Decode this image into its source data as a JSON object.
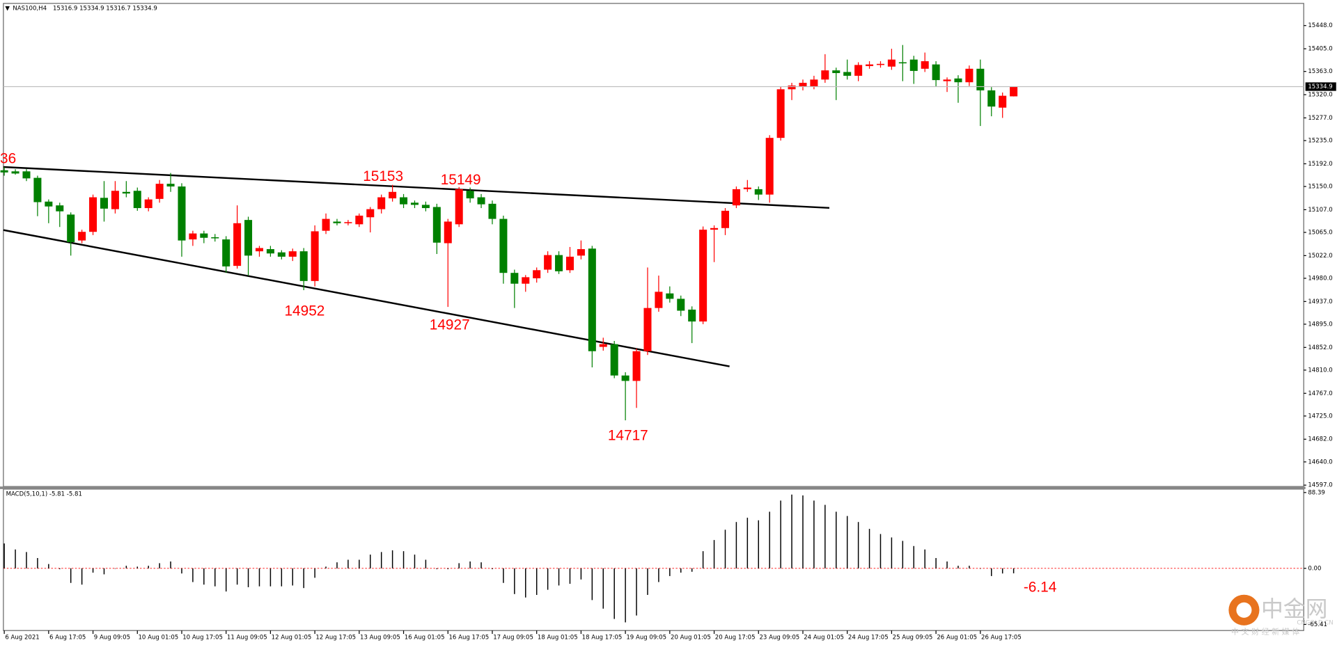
{
  "chart_data": [
    {
      "type": "candlestick",
      "title": "NAS100,H4",
      "subtitle": "15316.9 15334.9 15316.7 15334.9",
      "categories": [
        "6 Aug 2021",
        null,
        null,
        null,
        "6 Aug 17:05",
        null,
        null,
        null,
        "9 Aug 09:05",
        null,
        null,
        null,
        "10 Aug 01:05",
        null,
        null,
        null,
        "10 Aug 17:05",
        null,
        null,
        null,
        "11 Aug 09:05",
        null,
        null,
        null,
        "12 Aug 01:05",
        null,
        null,
        null,
        "12 Aug 17:05",
        null,
        null,
        null,
        "13 Aug 09:05",
        null,
        null,
        null,
        "16 Aug 01:05",
        null,
        null,
        null,
        "16 Aug 17:05",
        null,
        null,
        null,
        "17 Aug 09:05",
        null,
        null,
        null,
        "18 Aug 01:05",
        null,
        null,
        null,
        "18 Aug 17:05",
        null,
        null,
        null,
        "19 Aug 09:05",
        null,
        null,
        null,
        "20 Aug 01:05",
        null,
        null,
        null,
        "20 Aug 17:05",
        null,
        null,
        null,
        "23 Aug 09:05",
        null,
        null,
        null,
        "24 Aug 01:05",
        null,
        null,
        null,
        "24 Aug 17:05",
        null,
        null,
        null,
        "25 Aug 09:05",
        null,
        null,
        null,
        "26 Aug 01:05",
        null,
        null,
        null,
        "26 Aug 17:05",
        null,
        null,
        null
      ],
      "open": [
        15180,
        15178,
        15178,
        15166,
        15122,
        15115,
        15098,
        15050,
        15066,
        15129,
        15108,
        15140,
        15142,
        15110,
        15127,
        15155,
        15150,
        15052,
        15063,
        15056,
        15052,
        15003,
        15088,
        15030,
        15034,
        15028,
        15020,
        15030,
        14975,
        15068,
        15085,
        15082,
        15080,
        15093,
        15108,
        15128,
        15130,
        15120,
        15116,
        15112,
        15045,
        15080,
        15142,
        15130,
        15118,
        15090,
        14990,
        14970,
        14980,
        14996,
        15023,
        14995,
        15022,
        15035,
        14853,
        14858,
        14800,
        14790,
        14845,
        14925,
        14952,
        14942,
        14922,
        14900,
        15070,
        15073,
        15115,
        15145,
        15145,
        15135,
        15240,
        15330,
        15335,
        15335,
        15348,
        15365,
        15362,
        15355,
        15373,
        15375,
        15372,
        15380,
        15385,
        15368,
        15376,
        15345,
        15350,
        15343,
        15368,
        15328,
        15296,
        15316.9
      ],
      "high": [
        15186,
        15182,
        15182,
        15170,
        15126,
        15120,
        15102,
        15070,
        15135,
        15160,
        15160,
        15160,
        15148,
        15130,
        15162,
        15175,
        15156,
        15068,
        15068,
        15062,
        15058,
        15115,
        15094,
        15040,
        15040,
        15032,
        15035,
        15036,
        15078,
        15100,
        15090,
        15088,
        15100,
        15112,
        15135,
        15153,
        15136,
        15124,
        15122,
        15118,
        15090,
        15149,
        15148,
        15136,
        15124,
        15096,
        14996,
        14986,
        15000,
        15030,
        15030,
        15038,
        15050,
        15040,
        14870,
        14864,
        14806,
        14850,
        15000,
        14985,
        14965,
        14948,
        14928,
        15076,
        15078,
        15110,
        15150,
        15162,
        15150,
        15245,
        15335,
        15342,
        15348,
        15355,
        15395,
        15370,
        15385,
        15380,
        15382,
        15382,
        15405,
        15412,
        15392,
        15398,
        15382,
        15352,
        15356,
        15374,
        15385,
        15334,
        15324,
        15334.9
      ],
      "low": [
        15170,
        15172,
        15160,
        15095,
        15082,
        15075,
        15022,
        15045,
        15060,
        15085,
        15100,
        15130,
        15105,
        15104,
        15120,
        15140,
        15020,
        15040,
        15045,
        15048,
        14990,
        14998,
        14985,
        15020,
        15020,
        15015,
        15012,
        14958,
        14965,
        15062,
        15078,
        15078,
        15075,
        15065,
        15100,
        15122,
        15110,
        15110,
        15104,
        15025,
        14927,
        15075,
        15120,
        15110,
        15080,
        14970,
        14925,
        14955,
        14972,
        14990,
        14988,
        14990,
        15015,
        14815,
        14846,
        14795,
        14717,
        14740,
        14838,
        14918,
        14935,
        14910,
        14860,
        14895,
        15010,
        15060,
        15110,
        15140,
        15125,
        15120,
        15235,
        15310,
        15328,
        15330,
        15342,
        15310,
        15348,
        15345,
        15368,
        15370,
        15366,
        15345,
        15340,
        15362,
        15335,
        15325,
        15305,
        15336,
        15262,
        15280,
        15277,
        15316.7
      ],
      "close": [
        15176,
        15174,
        15165,
        15121,
        15113,
        15104,
        15047,
        15066,
        15130,
        15109,
        15142,
        15137,
        15110,
        15126,
        15155,
        15150,
        15050,
        15063,
        15055,
        15054,
        15002,
        15082,
        15022,
        15036,
        15026,
        15020,
        15030,
        14975,
        15067,
        15090,
        15082,
        15084,
        15096,
        15108,
        15130,
        15140,
        15117,
        15116,
        15110,
        15046,
        15085,
        15145,
        15128,
        15117,
        15090,
        14990,
        14970,
        14982,
        14995,
        15023,
        14993,
        15020,
        15034,
        14845,
        14858,
        14800,
        14790,
        14845,
        14925,
        14955,
        14942,
        14920,
        14900,
        15070,
        15073,
        15105,
        15145,
        15148,
        15135,
        15240,
        15330,
        15337,
        15342,
        15348,
        15365,
        15360,
        15355,
        15375,
        15376,
        15377,
        15385,
        15378,
        15364,
        15382,
        15347,
        15348,
        15343,
        15368,
        15328,
        15298,
        15318,
        15334.9
      ],
      "up_color": "#ff0000",
      "down_color": "#008000",
      "ylim": [
        14596,
        15489
      ],
      "yticks": [
        {
          "value": 15448,
          "label": "15448.0"
        },
        {
          "value": 15405,
          "label": "15405.0"
        },
        {
          "value": 15363,
          "label": "15363.0"
        },
        {
          "value": 15320,
          "label": "15320.0"
        },
        {
          "value": 15277,
          "label": "15277.0"
        },
        {
          "value": 15235,
          "label": "15235.0"
        },
        {
          "value": 15192,
          "label": "15192.0"
        },
        {
          "value": 15150,
          "label": "15150.0"
        },
        {
          "value": 15107,
          "label": "15107.0"
        },
        {
          "value": 15065,
          "label": "15065.0"
        },
        {
          "value": 15022,
          "label": "15022.0"
        },
        {
          "value": 14980,
          "label": "14980.0"
        },
        {
          "value": 14937,
          "label": "14937.0"
        },
        {
          "value": 14895,
          "label": "14895.0"
        },
        {
          "value": 14852,
          "label": "14852.0"
        },
        {
          "value": 14810,
          "label": "14810.0"
        },
        {
          "value": 14767,
          "label": "14767.0"
        },
        {
          "value": 14725,
          "label": "14725.0"
        },
        {
          "value": 14682,
          "label": "14682.0"
        },
        {
          "value": 14640,
          "label": "14640.0"
        },
        {
          "value": 14597,
          "label": "14597.0"
        }
      ],
      "last_price": {
        "value": 15334.9,
        "label": "15334.9"
      },
      "annotations": [
        "36",
        "15153",
        "15149",
        "14952",
        "14927",
        "14717"
      ]
    },
    {
      "type": "bar",
      "title": "MACD(5,10,1) -5.81 -5.81",
      "color": "#000000",
      "values": [
        29,
        22,
        19,
        12,
        5,
        -1,
        -17,
        -19,
        -5,
        -7,
        0,
        3,
        2,
        3,
        6,
        8,
        -6,
        -16,
        -19,
        -21,
        -27,
        -19,
        -22,
        -21,
        -21,
        -21,
        -20,
        -23,
        -11,
        2,
        7,
        10,
        10,
        16,
        19,
        21,
        20,
        16,
        10,
        -1,
        -1,
        6,
        8,
        7,
        -1,
        -17,
        -30,
        -34,
        -31,
        -25,
        -20,
        -18,
        -13,
        -37,
        -47,
        -59,
        -63,
        -55,
        -31,
        -16,
        -9,
        -5,
        -4,
        20,
        33,
        45,
        54,
        59,
        56,
        66,
        79,
        86,
        85,
        79,
        74,
        66,
        61,
        54,
        46,
        40,
        36,
        32,
        26,
        22,
        12,
        8,
        3,
        3,
        0,
        -9,
        -6,
        -5.81
      ],
      "ylim": [
        -72.5,
        92.4
      ],
      "yticks": [
        {
          "value": 88.39,
          "label": "88.39"
        },
        {
          "value": 0,
          "label": "0.00"
        },
        {
          "value": -65.41,
          "label": "-65.41"
        }
      ],
      "annotations": [
        "-6.14"
      ]
    }
  ],
  "watermark": {
    "brand": "中金网",
    "site": "CNGOLD.CN",
    "tagline": "中 文 财 经 新 媒 体"
  }
}
